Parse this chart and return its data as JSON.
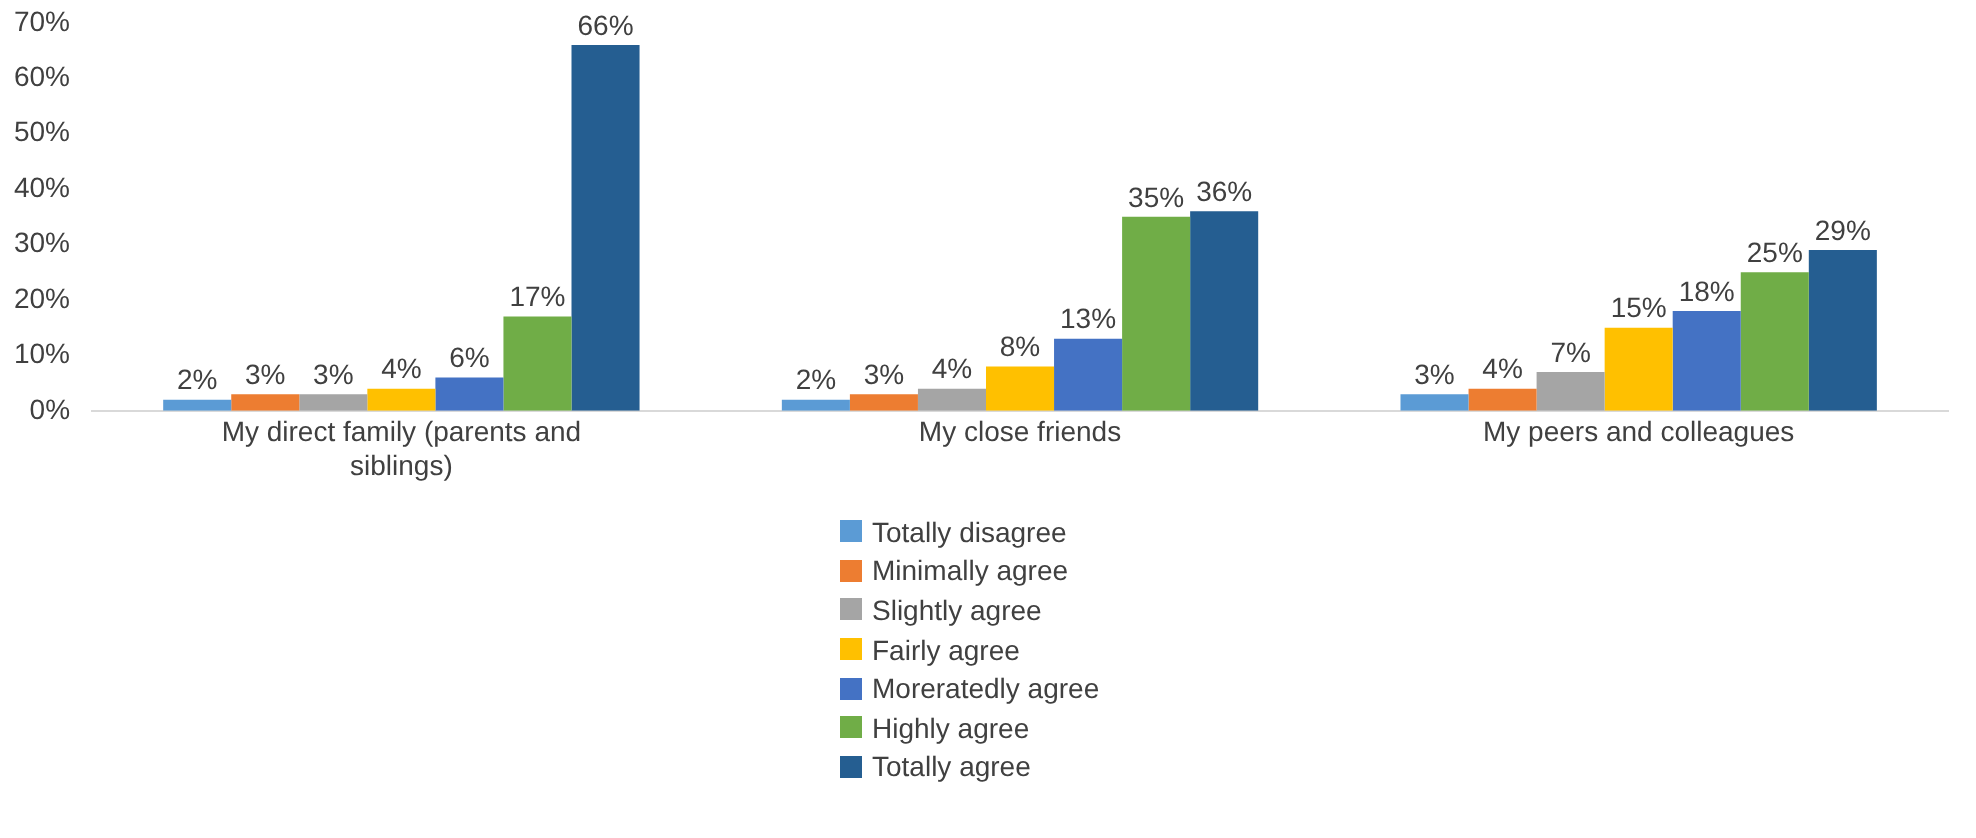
{
  "chart_data": {
    "type": "bar",
    "categories": [
      "My direct family (parents and siblings)",
      "My close friends",
      "My peers and colleagues"
    ],
    "series": [
      {
        "name": "Totally disagree",
        "color": "#5b9bd5",
        "values": [
          2,
          2,
          3
        ],
        "value_labels": [
          "2%",
          "2%",
          "3%"
        ]
      },
      {
        "name": "Minimally agree",
        "color": "#ed7d31",
        "values": [
          3,
          3,
          4
        ],
        "value_labels": [
          "3%",
          "3%",
          "4%"
        ]
      },
      {
        "name": "Slightly agree",
        "color": "#a5a5a5",
        "values": [
          3,
          4,
          7
        ],
        "value_labels": [
          "3%",
          "4%",
          "7%"
        ]
      },
      {
        "name": "Fairly agree",
        "color": "#ffc000",
        "values": [
          4,
          8,
          15
        ],
        "value_labels": [
          "4%",
          "8%",
          "15%"
        ]
      },
      {
        "name": "Moreratedly agree",
        "color": "#4472c4",
        "values": [
          6,
          13,
          18
        ],
        "value_labels": [
          "6%",
          "13%",
          "18%"
        ]
      },
      {
        "name": "Highly agree",
        "color": "#70ad47",
        "values": [
          17,
          35,
          25
        ],
        "value_labels": [
          "17%",
          "35%",
          "25%"
        ]
      },
      {
        "name": "Totally agree",
        "color": "#255e91",
        "values": [
          66,
          36,
          29
        ],
        "value_labels": [
          "66%",
          "36%",
          "29%"
        ]
      }
    ],
    "ylim": [
      0,
      70
    ],
    "yticks": [
      {
        "value": 0,
        "label": "0%"
      },
      {
        "value": 10,
        "label": "10%"
      },
      {
        "value": 20,
        "label": "20%"
      },
      {
        "value": 30,
        "label": "30%"
      },
      {
        "value": 40,
        "label": "40%"
      },
      {
        "value": 50,
        "label": "50%"
      },
      {
        "value": 60,
        "label": "60%"
      },
      {
        "value": 70,
        "label": "70%"
      }
    ],
    "grid": false,
    "legend": "bottom"
  }
}
